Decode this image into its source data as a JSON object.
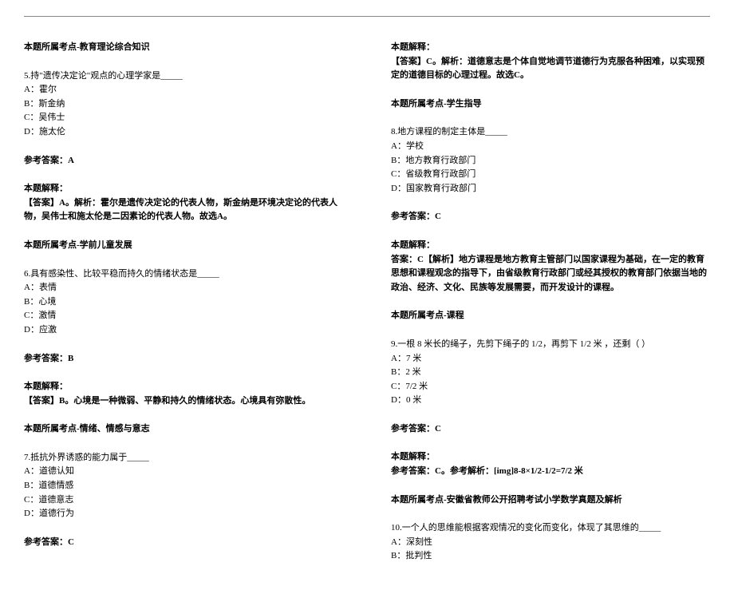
{
  "left": {
    "topic1": "本题所属考点-教育理论综合知识",
    "q5": {
      "stem": "5.持\"遗传决定论\"观点的心理学家是_____",
      "A": "A：霍尔",
      "B": "B：斯金纳",
      "C": "C：吴伟士",
      "D": "D：施太伦",
      "ansLabel": "参考答案：A",
      "explLabel": "本题解释：",
      "expl": "【答案】A。解析：霍尔是遗传决定论的代表人物，斯金纳是环境决定论的代表人物，吴伟士和施太伦是二因素论的代表人物。故选A。",
      "topic": "本题所属考点-学前儿童发展"
    },
    "q6": {
      "stem": "6.具有感染性、比较平稳而持久的情绪状态是_____",
      "A": "A：表情",
      "B": "B：心境",
      "C": "C：激情",
      "D": "D：应激",
      "ansLabel": "参考答案：B",
      "explLabel": "本题解释：",
      "expl": "【答案】B。心境是一种微弱、平静和持久的情绪状态。心境具有弥散性。",
      "topic": "本题所属考点-情绪、情感与意志"
    },
    "q7": {
      "stem": "7.抵抗外界诱惑的能力属于_____",
      "A": "A：道德认知",
      "B": "B：道德情感",
      "C": "C：道德意志",
      "D": "D：道德行为",
      "ansLabel": "参考答案：C"
    }
  },
  "right": {
    "q7expl": {
      "explLabel": "本题解释：",
      "expl": "【答案】C。解析：道德意志是个体自觉地调节道德行为克服各种困难，以实现预定的道德目标的心理过程。故选C。",
      "topic": "本题所属考点-学生指导"
    },
    "q8": {
      "stem": "8.地方课程的制定主体是_____",
      "A": "A：学校",
      "B": "B：地方教育行政部门",
      "C": "C：省级教育行政部门",
      "D": "D：国家教育行政部门",
      "ansLabel": "参考答案：C",
      "explLabel": "本题解释：",
      "expl": "答案：C【解析】地方课程是地方教育主管部门以国家课程为基础，在一定的教育思想和课程观念的指导下，由省级教育行政部门或经其授权的教育部门依据当地的政治、经济、文化、民族等发展需要，而开发设计的课程。",
      "topic": "本题所属考点-课程"
    },
    "q9": {
      "stem": "9.一根 8 米长的绳子，先剪下绳子的 1/2，再剪下 1/2 米 ，还剩（ ）",
      "A": "A：7 米",
      "B": "B：2 米",
      "C": "C：7/2 米",
      "D": "D：0 米",
      "ansLabel": "参考答案：C",
      "explLabel": "本题解释：",
      "expl": "参考答案：C。参考解析：[img]8-8×1/2-1/2=7/2 米",
      "topic": "本题所属考点-安徽省教师公开招聘考试小学数学真题及解析"
    },
    "q10": {
      "stem": "10.一个人的思维能根据客观情况的变化而变化，体现了其思维的_____",
      "A": "A：深刻性",
      "B": "B：批判性"
    }
  }
}
